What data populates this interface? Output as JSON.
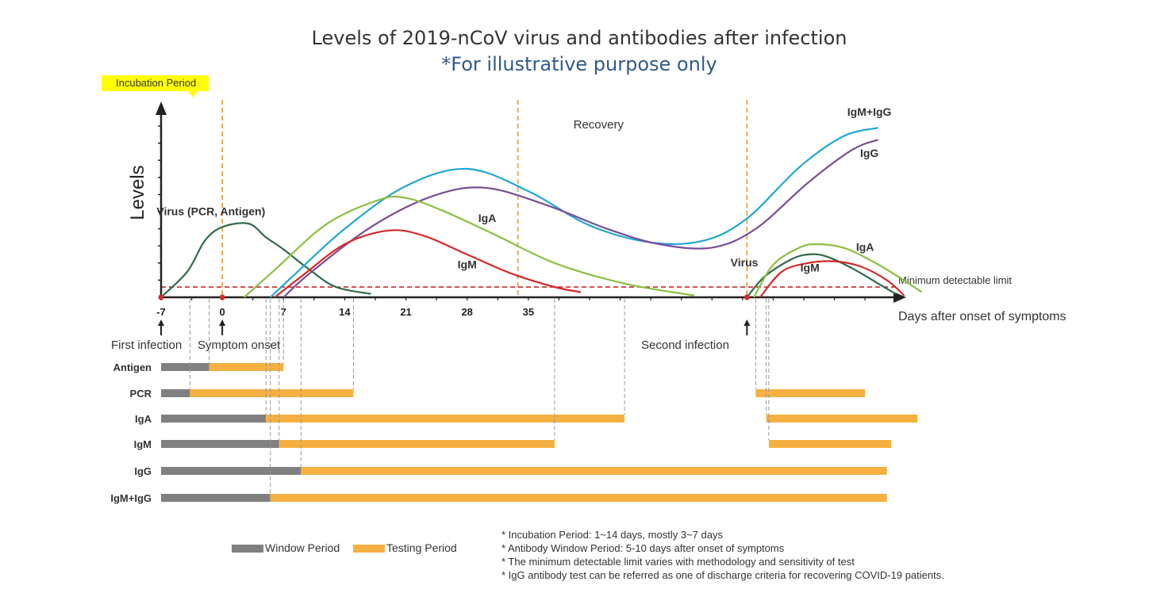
{
  "title": "Levels of 2019-nCoV virus and antibodies after infection",
  "subtitle": "*For illustrative purpose only",
  "incubation_label": "Incubation Period",
  "colors": {
    "virus": "#2e6b47",
    "igm_igg": "#1fa8d4",
    "igg": "#7a4d96",
    "iga": "#8dbf42",
    "igm": "#d42a2a",
    "window": "#808080",
    "testing": "#f5b041",
    "guide": "#e59a2a",
    "limit": "#c00000"
  },
  "chart_data": {
    "type": "line",
    "title": "Levels of 2019-nCoV virus and antibodies after infection",
    "subtitle": "*For illustrative purpose only",
    "xlabel": "Days after onset of symptoms",
    "ylabel": "Levels",
    "x_ticks": [
      -7,
      0,
      7,
      14,
      21,
      28,
      35
    ],
    "xlim": [
      -7,
      77
    ],
    "ylim": [
      0,
      10
    ],
    "min_limit_label": "Minimum detectable limit",
    "min_limit_level": 0.6,
    "phase_label": "Recovery",
    "guide_days": [
      0,
      33.8,
      60
    ],
    "series": [
      {
        "name": "Virus (PCR, Antigen)",
        "key": "virus",
        "points": [
          [
            -7,
            0
          ],
          [
            -4,
            1.5
          ],
          [
            -2,
            3.3
          ],
          [
            0,
            4.1
          ],
          [
            3,
            4.3
          ],
          [
            5,
            3.5
          ],
          [
            7,
            2.8
          ],
          [
            10,
            1.6
          ],
          [
            13,
            0.6
          ],
          [
            17,
            0.2
          ]
        ]
      },
      {
        "name": "IgM+IgG",
        "key": "igm_igg",
        "points": [
          [
            5.5,
            0
          ],
          [
            8,
            1.2
          ],
          [
            14,
            4.0
          ],
          [
            21,
            6.5
          ],
          [
            28,
            7.5
          ],
          [
            35,
            6.2
          ],
          [
            42,
            4.2
          ],
          [
            49,
            3.2
          ],
          [
            55,
            3.3
          ],
          [
            60,
            4.6
          ],
          [
            66,
            7.6
          ],
          [
            71,
            9.4
          ],
          [
            75,
            9.9
          ]
        ]
      },
      {
        "name": "IgG",
        "key": "igg",
        "points": [
          [
            7,
            0
          ],
          [
            10,
            1.4
          ],
          [
            17,
            4.1
          ],
          [
            24,
            5.9
          ],
          [
            30,
            6.4
          ],
          [
            37,
            5.4
          ],
          [
            44,
            4.0
          ],
          [
            50,
            3.1
          ],
          [
            56,
            2.9
          ],
          [
            61,
            4.0
          ],
          [
            67,
            6.7
          ],
          [
            72,
            8.6
          ],
          [
            75,
            9.2
          ]
        ]
      },
      {
        "name": "IgA",
        "key": "iga",
        "points": [
          [
            2.5,
            0
          ],
          [
            6,
            1.6
          ],
          [
            12,
            4.3
          ],
          [
            18,
            5.7
          ],
          [
            21,
            5.8
          ],
          [
            25,
            5.1
          ],
          [
            31,
            3.7
          ],
          [
            38,
            2.0
          ],
          [
            46,
            0.8
          ],
          [
            54,
            0.1
          ]
        ]
      },
      {
        "name": "IgM",
        "key": "igm",
        "points": [
          [
            6,
            0
          ],
          [
            9,
            1.2
          ],
          [
            14,
            3.1
          ],
          [
            19,
            3.9
          ],
          [
            23,
            3.6
          ],
          [
            28,
            2.5
          ],
          [
            33,
            1.4
          ],
          [
            38,
            0.6
          ],
          [
            41,
            0.3
          ]
        ]
      },
      {
        "name": "Virus",
        "key": "virus",
        "points": [
          [
            60,
            0
          ],
          [
            62,
            1.2
          ],
          [
            65,
            2.2
          ],
          [
            67,
            2.5
          ],
          [
            69,
            2.4
          ],
          [
            72,
            1.7
          ],
          [
            75,
            0.8
          ],
          [
            77,
            0.2
          ]
        ]
      },
      {
        "name": "IgA",
        "key": "iga",
        "points": [
          [
            60.8,
            0
          ],
          [
            63,
            1.9
          ],
          [
            66,
            2.9
          ],
          [
            68,
            3.1
          ],
          [
            71,
            2.9
          ],
          [
            74,
            2.2
          ],
          [
            77,
            1.3
          ],
          [
            80,
            0.3
          ]
        ]
      },
      {
        "name": "IgM",
        "key": "igm",
        "points": [
          [
            61.5,
            0
          ],
          [
            64,
            1.5
          ],
          [
            67,
            2.0
          ],
          [
            70,
            2.1
          ],
          [
            73,
            1.8
          ],
          [
            76,
            1.0
          ],
          [
            78,
            0.1
          ]
        ]
      }
    ],
    "series_labels": [
      {
        "text": "Virus (PCR, Antigen)",
        "day": -1.3,
        "level": 4.8
      },
      {
        "text": "IgM+IgG",
        "day": 74,
        "level": 10.6
      },
      {
        "text": "IgG",
        "day": 74,
        "level": 8.2
      },
      {
        "text": "IgA",
        "day": 30.3,
        "level": 4.4
      },
      {
        "text": "IgM",
        "day": 28,
        "level": 1.7
      },
      {
        "text": "Virus",
        "day": 59.7,
        "level": 1.8
      },
      {
        "text": "IgA",
        "day": 73.5,
        "level": 2.7
      },
      {
        "text": "IgM",
        "day": 67.2,
        "level": 1.5
      }
    ],
    "events": [
      {
        "label": "First infection",
        "day": -7
      },
      {
        "label": "Symptom onset",
        "day": 0
      },
      {
        "label": "Second infection",
        "day": 60
      }
    ],
    "timeline": {
      "rows": [
        {
          "name": "Antigen",
          "window": [
            -7,
            -1.5
          ],
          "testing": [
            -1.5,
            7
          ],
          "testing2": null
        },
        {
          "name": "PCR",
          "window": [
            -7,
            -3.7
          ],
          "testing": [
            -3.7,
            15
          ],
          "testing2": [
            61,
            73.5
          ]
        },
        {
          "name": "IgA",
          "window": [
            -7,
            5
          ],
          "testing": [
            5,
            46
          ],
          "testing2": [
            62.2,
            79.5
          ]
        },
        {
          "name": "IgM",
          "window": [
            -7,
            6.5
          ],
          "testing": [
            6.5,
            38
          ],
          "testing2": [
            62.5,
            76.5
          ]
        },
        {
          "name": "IgG",
          "window": [
            -7,
            9
          ],
          "testing": [
            9,
            76
          ],
          "testing2": null
        },
        {
          "name": "IgM+IgG",
          "window": [
            -7,
            5.5
          ],
          "testing": [
            5.5,
            76
          ],
          "testing2": null
        }
      ]
    }
  },
  "legend": {
    "window": "Window Period",
    "testing": "Testing Period"
  },
  "notes": [
    "* Incubation Period: 1~14 days, mostly 3~7 days",
    "* Antibody Window Period:   5-10 days after onset of symptoms",
    "* The minimum detectable limit varies with methodology and sensitivity of test",
    "* IgG antibody test can be referred as one of discharge criteria for recovering COVID-19 patients."
  ]
}
